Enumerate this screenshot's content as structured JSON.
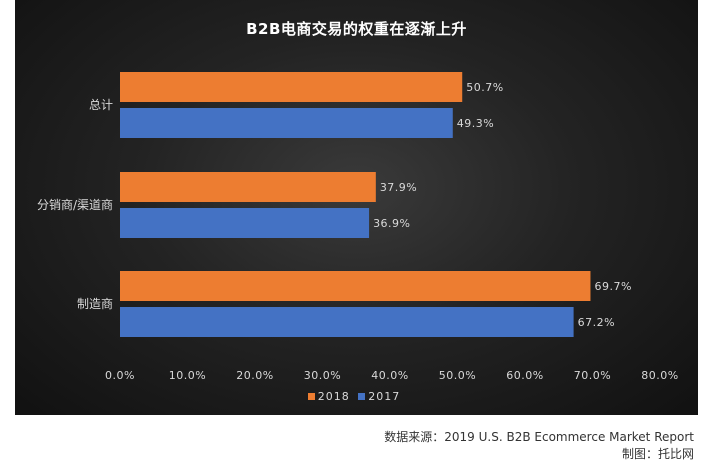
{
  "chart_data": {
    "type": "bar",
    "orientation": "horizontal",
    "title": "B2B电商交易的权重在逐渐上升",
    "categories": [
      "总计",
      "分销商/渠道商",
      "制造商"
    ],
    "series": [
      {
        "name": "2018",
        "color": "#ED7D31",
        "values": [
          50.7,
          37.9,
          69.7
        ],
        "labels": [
          "50.7%",
          "37.9%",
          "69.7%"
        ]
      },
      {
        "name": "2017",
        "color": "#4472C4",
        "values": [
          49.3,
          36.9,
          67.2
        ],
        "labels": [
          "49.3%",
          "36.9%",
          "67.2%"
        ]
      }
    ],
    "xlim": [
      0,
      80
    ],
    "xticks": [
      "0.0%",
      "10.0%",
      "20.0%",
      "30.0%",
      "40.0%",
      "50.0%",
      "60.0%",
      "70.0%",
      "80.0%"
    ],
    "grid": false,
    "legend_position": "bottom"
  },
  "legend": {
    "s2018": "2018",
    "s2017": "2017"
  },
  "colors": {
    "s2018": "#ED7D31",
    "s2017": "#4472C4"
  },
  "footer": {
    "source": "数据来源：2019 U.S. B2B Ecommerce Market Report",
    "credit": "制图：托比网"
  }
}
